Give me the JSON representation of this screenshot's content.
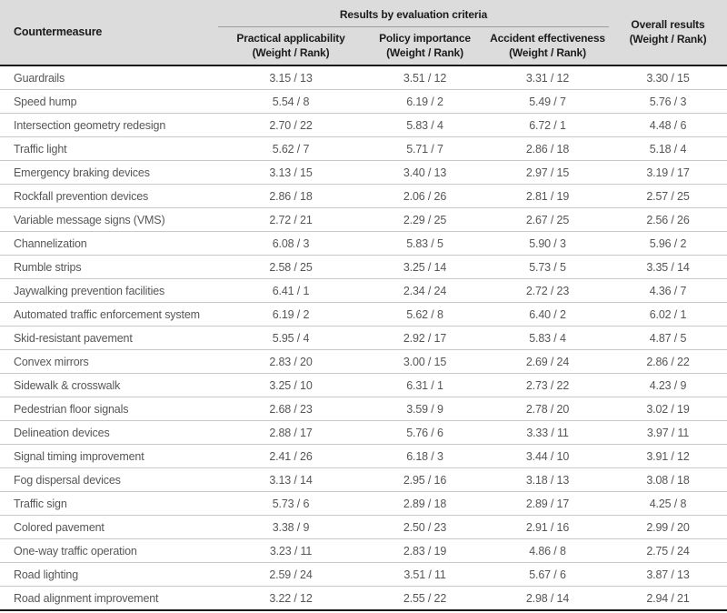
{
  "table": {
    "corner_label": "Countermeasure",
    "group_label": "Results by evaluation criteria",
    "criteria_columns": [
      {
        "title": "Practical applicability",
        "sub": "(Weight / Rank)"
      },
      {
        "title": "Policy importance",
        "sub": "(Weight / Rank)"
      },
      {
        "title": "Accident effectiveness",
        "sub": "(Weight / Rank)"
      }
    ],
    "overall_column": {
      "title": "Overall results",
      "sub": "(Weight / Rank)"
    },
    "colors": {
      "header_bg": "#dcdcdc",
      "header_text": "#1b1b1b",
      "body_text": "#565656",
      "row_divider": "#c9c9c9",
      "strong_border": "#1a1a1a",
      "group_underline": "#9b9b9b"
    },
    "rows": [
      {
        "name": "Guardrails",
        "values": [
          "3.15 / 13",
          "3.51 / 12",
          "3.31 / 12",
          "3.30 / 15"
        ]
      },
      {
        "name": "Speed hump",
        "values": [
          "5.54 / 8",
          "6.19 / 2",
          "5.49 / 7",
          "5.76 / 3"
        ]
      },
      {
        "name": "Intersection geometry redesign",
        "values": [
          "2.70 / 22",
          "5.83 / 4",
          "6.72 / 1",
          "4.48 / 6"
        ]
      },
      {
        "name": "Traffic light",
        "values": [
          "5.62 / 7",
          "5.71 / 7",
          "2.86 / 18",
          "5.18 / 4"
        ]
      },
      {
        "name": "Emergency braking devices",
        "values": [
          "3.13 / 15",
          "3.40 / 13",
          "2.97 / 15",
          "3.19 / 17"
        ]
      },
      {
        "name": "Rockfall prevention devices",
        "values": [
          "2.86 / 18",
          "2.06 / 26",
          "2.81 / 19",
          "2.57 / 25"
        ]
      },
      {
        "name": "Variable message signs (VMS)",
        "values": [
          "2.72 / 21",
          "2.29 / 25",
          "2.67 / 25",
          "2.56 / 26"
        ]
      },
      {
        "name": "Channelization",
        "values": [
          "6.08 / 3",
          "5.83 / 5",
          "5.90 / 3",
          "5.96 / 2"
        ]
      },
      {
        "name": "Rumble strips",
        "values": [
          "2.58 / 25",
          "3.25 / 14",
          "5.73 / 5",
          "3.35 / 14"
        ]
      },
      {
        "name": "Jaywalking prevention facilities",
        "values": [
          "6.41 / 1",
          "2.34 / 24",
          "2.72 / 23",
          "4.36 / 7"
        ]
      },
      {
        "name": "Automated traffic enforcement system",
        "values": [
          "6.19 / 2",
          "5.62 / 8",
          "6.40 / 2",
          "6.02 / 1"
        ]
      },
      {
        "name": "Skid-resistant pavement",
        "values": [
          "5.95 / 4",
          "2.92 / 17",
          "5.83 / 4",
          "4.87 / 5"
        ]
      },
      {
        "name": "Convex mirrors",
        "values": [
          "2.83 / 20",
          "3.00 / 15",
          "2.69 / 24",
          "2.86 / 22"
        ]
      },
      {
        "name": "Sidewalk & crosswalk",
        "values": [
          "3.25 / 10",
          "6.31 / 1",
          "2.73 / 22",
          "4.23 / 9"
        ]
      },
      {
        "name": "Pedestrian floor signals",
        "values": [
          "2.68 / 23",
          "3.59 / 9",
          "2.78 / 20",
          "3.02 / 19"
        ]
      },
      {
        "name": "Delineation devices",
        "values": [
          "2.88 / 17",
          "5.76 / 6",
          "3.33 / 11",
          "3.97 / 11"
        ]
      },
      {
        "name": "Signal timing improvement",
        "values": [
          "2.41 / 26",
          "6.18 / 3",
          "3.44 / 10",
          "3.91 / 12"
        ]
      },
      {
        "name": "Fog dispersal devices",
        "values": [
          "3.13 / 14",
          "2.95 / 16",
          "3.18 / 13",
          "3.08 / 18"
        ]
      },
      {
        "name": "Traffic sign",
        "values": [
          "5.73 / 6",
          "2.89 / 18",
          "2.89 / 17",
          "4.25 / 8"
        ]
      },
      {
        "name": "Colored pavement",
        "values": [
          "3.38 / 9",
          "2.50 / 23",
          "2.91 / 16",
          "2.99 / 20"
        ]
      },
      {
        "name": "One-way traffic operation",
        "values": [
          "3.23 / 11",
          "2.83 / 19",
          "4.86 / 8",
          "2.75 / 24"
        ]
      },
      {
        "name": "Road lighting",
        "values": [
          "2.59 / 24",
          "3.51 / 11",
          "5.67 / 6",
          "3.87 / 13"
        ]
      },
      {
        "name": "Road alignment improvement",
        "values": [
          "3.22 / 12",
          "2.55 / 22",
          "2.98 / 14",
          "2.94 / 21"
        ]
      }
    ]
  }
}
